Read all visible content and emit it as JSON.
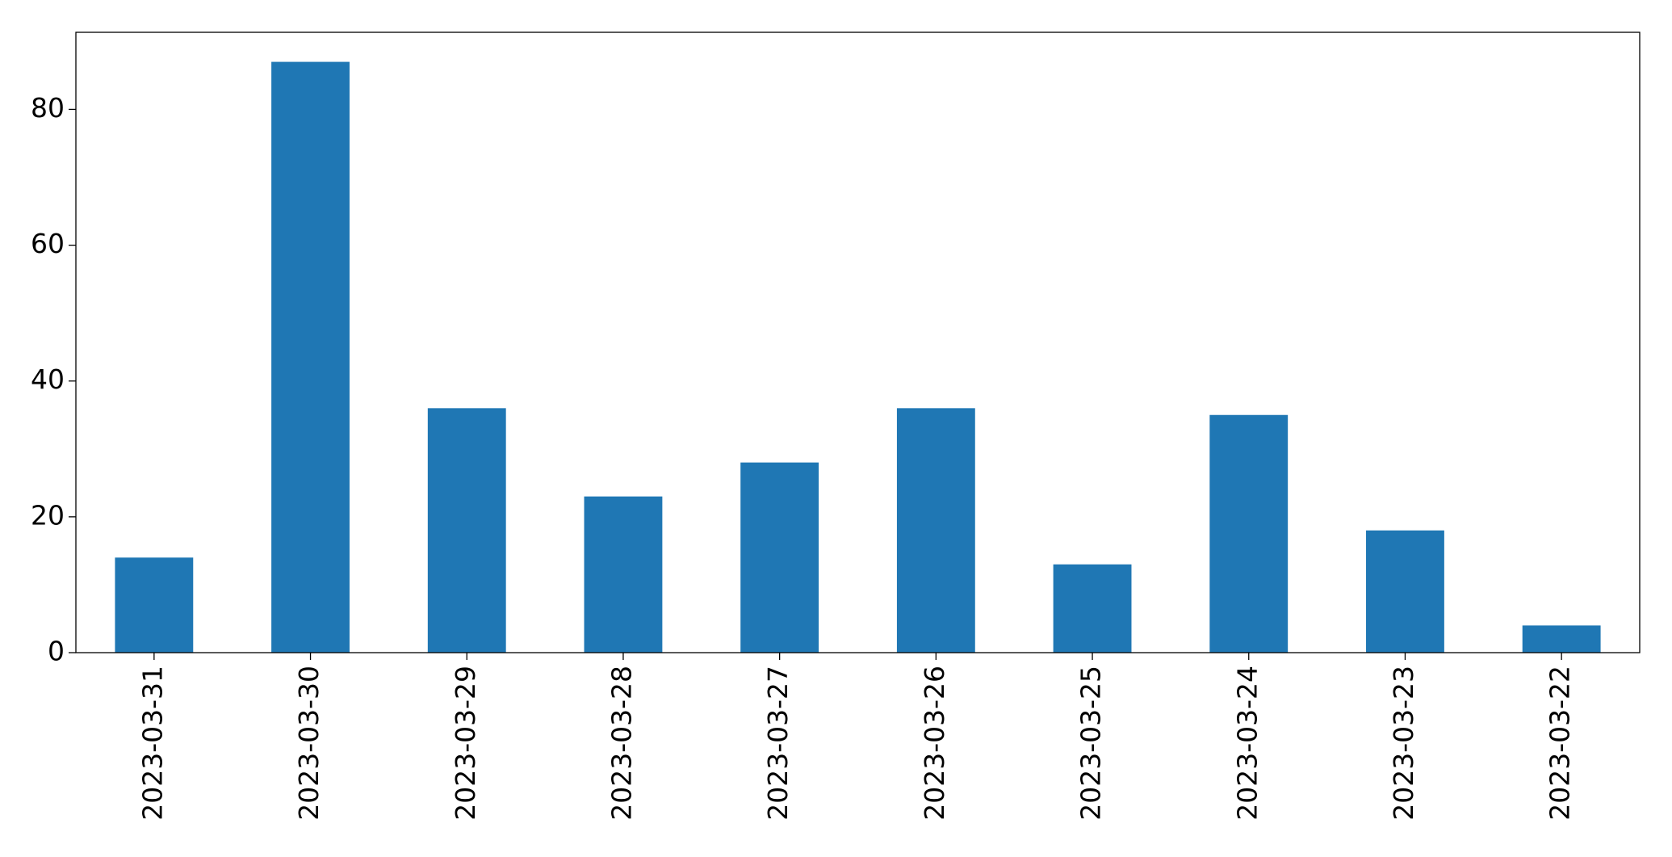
{
  "chart_data": {
    "type": "bar",
    "categories": [
      "2023-03-31",
      "2023-03-30",
      "2023-03-29",
      "2023-03-28",
      "2023-03-27",
      "2023-03-26",
      "2023-03-25",
      "2023-03-24",
      "2023-03-23",
      "2023-03-22"
    ],
    "values": [
      14,
      87,
      36,
      23,
      28,
      36,
      13,
      35,
      18,
      4
    ],
    "color": "#1f77b4",
    "ylim": [
      0,
      91.35
    ],
    "yticks": [
      0,
      20,
      40,
      60,
      80
    ],
    "grid": false
  }
}
